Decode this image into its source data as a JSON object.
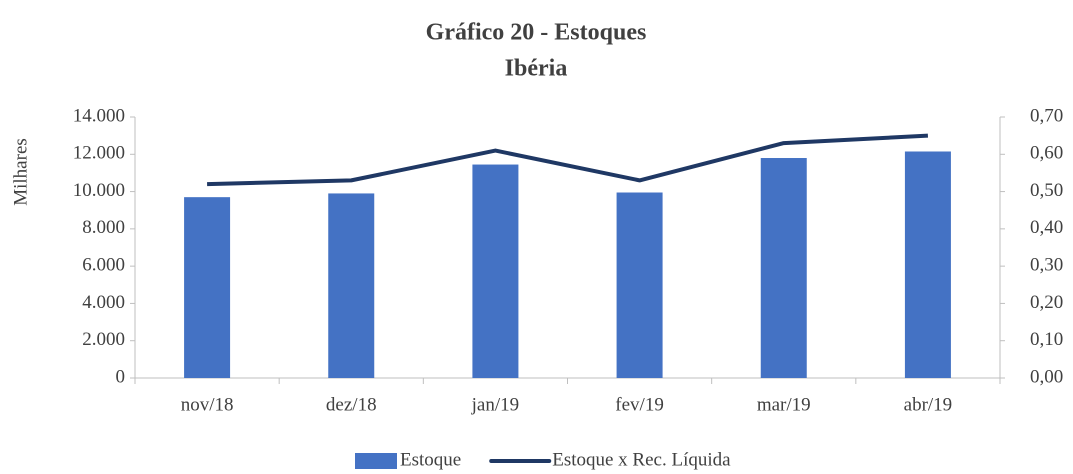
{
  "chart_data": {
    "type": "bar",
    "title": "Gráfico 20 - Estoques",
    "subtitle": "Ibéria",
    "ylabel": "Milhares",
    "categories": [
      "nov/18",
      "dez/18",
      "jan/19",
      "fev/19",
      "mar/19",
      "abr/19"
    ],
    "series": [
      {
        "name": "Estoque",
        "type": "bar",
        "color": "#4472c4",
        "values": [
          9700,
          9900,
          11450,
          9950,
          11800,
          12150
        ]
      },
      {
        "name": "Estoque x Rec. Líquida",
        "type": "line",
        "axis": "y2",
        "color": "#1f3864",
        "values": [
          0.52,
          0.53,
          0.61,
          0.53,
          0.63,
          0.65
        ]
      }
    ],
    "ylim": [
      0,
      14000
    ],
    "yticks": [
      0,
      {
        "value": 2000,
        "label": "2.000"
      },
      {
        "value": 4000,
        "label": "4.000"
      },
      {
        "value": 6000,
        "label": "6.000"
      },
      {
        "value": 8000,
        "label": "8.000"
      },
      {
        "value": 10000,
        "label": "10.000"
      },
      {
        "value": 12000,
        "label": "12.000"
      },
      {
        "value": 14000,
        "label": "14.000"
      }
    ],
    "y2lim": [
      0,
      0.7
    ],
    "y2ticks": [
      {
        "value": 0,
        "label": "0,00"
      },
      {
        "value": 0.1,
        "label": "0,10"
      },
      {
        "value": 0.2,
        "label": "0,20"
      },
      {
        "value": 0.3,
        "label": "0,30"
      },
      {
        "value": 0.4,
        "label": "0,40"
      },
      {
        "value": 0.5,
        "label": "0,50"
      },
      {
        "value": 0.6,
        "label": "0,60"
      },
      {
        "value": 0.7,
        "label": "0,70"
      }
    ],
    "legend": "bottom"
  }
}
